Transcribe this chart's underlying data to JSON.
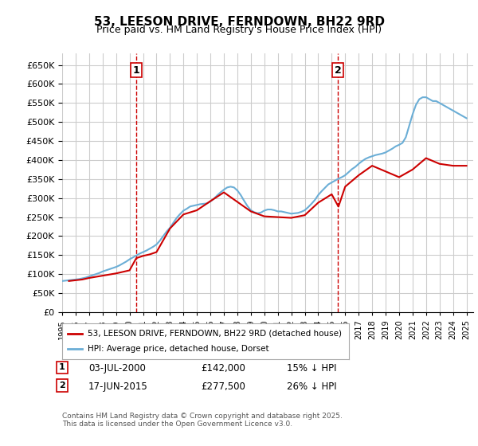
{
  "title": "53, LEESON DRIVE, FERNDOWN, BH22 9RD",
  "subtitle": "Price paid vs. HM Land Registry's House Price Index (HPI)",
  "ylabel": "",
  "ylim": [
    0,
    680000
  ],
  "yticks": [
    0,
    50000,
    100000,
    150000,
    200000,
    250000,
    300000,
    350000,
    400000,
    450000,
    500000,
    550000,
    600000,
    650000
  ],
  "xlim_start": 1995.0,
  "xlim_end": 2025.5,
  "background_color": "#ffffff",
  "grid_color": "#cccccc",
  "hpi_color": "#6baed6",
  "price_color": "#cc0000",
  "annotation1": {
    "x": 2000.5,
    "label": "1",
    "price": 142000,
    "date": "03-JUL-2000"
  },
  "annotation2": {
    "x": 2015.46,
    "label": "2",
    "price": 277500,
    "date": "17-JUN-2015"
  },
  "legend_line1": "53, LEESON DRIVE, FERNDOWN, BH22 9RD (detached house)",
  "legend_line2": "HPI: Average price, detached house, Dorset",
  "table_row1": "1    03-JUL-2000    £142,000    15% ↓ HPI",
  "table_row2": "2    17-JUN-2015    £277,500    26% ↓ HPI",
  "footnote": "Contains HM Land Registry data © Crown copyright and database right 2025.\nThis data is licensed under the Open Government Licence v3.0.",
  "hpi_years": [
    1995.0,
    1995.25,
    1995.5,
    1995.75,
    1996.0,
    1996.25,
    1996.5,
    1996.75,
    1997.0,
    1997.25,
    1997.5,
    1997.75,
    1998.0,
    1998.25,
    1998.5,
    1998.75,
    1999.0,
    1999.25,
    1999.5,
    1999.75,
    2000.0,
    2000.25,
    2000.5,
    2000.75,
    2001.0,
    2001.25,
    2001.5,
    2001.75,
    2002.0,
    2002.25,
    2002.5,
    2002.75,
    2003.0,
    2003.25,
    2003.5,
    2003.75,
    2004.0,
    2004.25,
    2004.5,
    2004.75,
    2005.0,
    2005.25,
    2005.5,
    2005.75,
    2006.0,
    2006.25,
    2006.5,
    2006.75,
    2007.0,
    2007.25,
    2007.5,
    2007.75,
    2008.0,
    2008.25,
    2008.5,
    2008.75,
    2009.0,
    2009.25,
    2009.5,
    2009.75,
    2010.0,
    2010.25,
    2010.5,
    2010.75,
    2011.0,
    2011.25,
    2011.5,
    2011.75,
    2012.0,
    2012.25,
    2012.5,
    2012.75,
    2013.0,
    2013.25,
    2013.5,
    2013.75,
    2014.0,
    2014.25,
    2014.5,
    2014.75,
    2015.0,
    2015.25,
    2015.5,
    2015.75,
    2016.0,
    2016.25,
    2016.5,
    2016.75,
    2017.0,
    2017.25,
    2017.5,
    2017.75,
    2018.0,
    2018.25,
    2018.5,
    2018.75,
    2019.0,
    2019.25,
    2019.5,
    2019.75,
    2020.0,
    2020.25,
    2020.5,
    2020.75,
    2021.0,
    2021.25,
    2021.5,
    2021.75,
    2022.0,
    2022.25,
    2022.5,
    2022.75,
    2023.0,
    2023.25,
    2023.5,
    2023.75,
    2024.0,
    2024.25,
    2024.5,
    2024.75,
    2025.0
  ],
  "hpi_values": [
    82000,
    83000,
    84000,
    85000,
    86000,
    87000,
    89000,
    91000,
    94000,
    97000,
    100000,
    103000,
    107000,
    110000,
    113000,
    116000,
    119000,
    123000,
    128000,
    133000,
    139000,
    144000,
    149000,
    154000,
    158000,
    162000,
    167000,
    172000,
    178000,
    188000,
    200000,
    212000,
    222000,
    235000,
    248000,
    258000,
    267000,
    272000,
    278000,
    280000,
    282000,
    284000,
    285000,
    286000,
    291000,
    298000,
    307000,
    315000,
    322000,
    328000,
    330000,
    328000,
    320000,
    308000,
    293000,
    279000,
    268000,
    263000,
    260000,
    262000,
    267000,
    270000,
    270000,
    268000,
    265000,
    265000,
    263000,
    261000,
    259000,
    260000,
    261000,
    264000,
    268000,
    276000,
    285000,
    295000,
    308000,
    318000,
    327000,
    336000,
    341000,
    346000,
    351000,
    355000,
    360000,
    368000,
    376000,
    382000,
    390000,
    397000,
    403000,
    407000,
    410000,
    413000,
    415000,
    417000,
    420000,
    425000,
    430000,
    436000,
    440000,
    445000,
    460000,
    490000,
    520000,
    545000,
    560000,
    565000,
    565000,
    560000,
    555000,
    555000,
    550000,
    545000,
    540000,
    535000,
    530000,
    525000,
    520000,
    515000,
    510000
  ],
  "price_years": [
    1995.5,
    1996.0,
    1996.5,
    1997.0,
    1997.5,
    1998.0,
    1998.5,
    1999.0,
    1999.5,
    2000.0,
    2000.5,
    2001.0,
    2001.5,
    2002.0,
    2003.0,
    2004.0,
    2005.0,
    2006.0,
    2007.0,
    2008.0,
    2009.0,
    2010.0,
    2011.0,
    2012.0,
    2013.0,
    2014.0,
    2015.0,
    2015.5,
    2016.0,
    2017.0,
    2018.0,
    2019.0,
    2020.0,
    2021.0,
    2022.0,
    2023.0,
    2024.0,
    2025.0
  ],
  "price_values": [
    82000,
    84000,
    86000,
    90000,
    93000,
    96000,
    99000,
    102000,
    106000,
    110000,
    142000,
    148000,
    152000,
    158000,
    220000,
    257000,
    268000,
    292000,
    315000,
    290000,
    265000,
    252000,
    250000,
    248000,
    255000,
    288000,
    310000,
    277500,
    330000,
    360000,
    385000,
    370000,
    355000,
    375000,
    405000,
    390000,
    385000,
    385000
  ]
}
